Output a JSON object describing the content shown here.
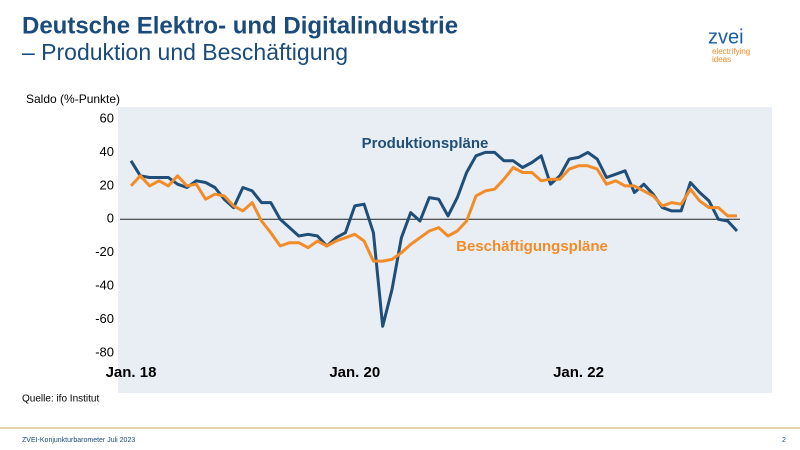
{
  "slide": {
    "title_line1": "Deutsche Elektro- und Digitalindustrie",
    "title_line2": "– Produktion und Beschäftigung",
    "logo": "zvei",
    "logo_tagline1": "electrifying",
    "logo_tagline2": "ideas",
    "source": "Quelle: ifo Institut",
    "footer": "ZVEI-Konjunkturbarometer Juli 2023",
    "page_number": "2"
  },
  "chart_data": {
    "type": "line",
    "y_label": "Saldo (%-Punkte)",
    "categories": [
      "Jan. 18",
      null,
      null,
      null,
      null,
      null,
      null,
      null,
      null,
      null,
      null,
      null,
      null,
      null,
      null,
      null,
      null,
      null,
      null,
      null,
      null,
      null,
      null,
      null,
      "Jan. 20",
      null,
      null,
      null,
      null,
      null,
      null,
      null,
      null,
      null,
      null,
      null,
      null,
      null,
      null,
      null,
      null,
      null,
      null,
      null,
      null,
      null,
      null,
      null,
      "Jan. 22",
      null,
      null,
      null,
      null,
      null,
      null,
      null,
      null,
      null,
      null,
      null,
      null,
      null,
      null,
      null,
      null,
      null
    ],
    "series": [
      {
        "name": "Produktionspläne",
        "color": "#1f4e79",
        "values": [
          35,
          26,
          25,
          25,
          25,
          21,
          19,
          23,
          22,
          19,
          12,
          7,
          19,
          17,
          10,
          10,
          0,
          -5,
          -10,
          -9,
          -10,
          -16,
          -11,
          -8,
          8,
          9,
          -8,
          -64,
          -42,
          -11,
          4,
          -1,
          13,
          12,
          2,
          13,
          28,
          38,
          40,
          40,
          35,
          35,
          31,
          34,
          38,
          21,
          26,
          36,
          37,
          40,
          36,
          25,
          27,
          29,
          16,
          21,
          15,
          7,
          5,
          5,
          22,
          16,
          11,
          0,
          -1,
          -7
        ]
      },
      {
        "name": "Beschäftigungspläne",
        "color": "#f28c28",
        "values": [
          20,
          26,
          20,
          23,
          20,
          26,
          20,
          21,
          12,
          15,
          14,
          8,
          5,
          10,
          -1,
          -8,
          -16,
          -14,
          -14,
          -17,
          -13,
          -16,
          -13,
          -11,
          -9,
          -13,
          -25,
          -25,
          -24,
          -20,
          -15,
          -11,
          -7,
          -5,
          -10,
          -7,
          -1,
          14,
          17,
          18,
          24,
          31,
          28,
          28,
          23,
          24,
          24,
          30,
          32,
          32,
          30,
          21,
          23,
          20,
          20,
          17,
          14,
          8,
          10,
          9,
          18,
          11,
          7,
          7,
          2,
          2
        ]
      }
    ],
    "ylim": [
      -80,
      60
    ],
    "yticks": [
      -80,
      -60,
      -40,
      -20,
      0,
      20,
      40,
      60
    ],
    "grid": false
  }
}
